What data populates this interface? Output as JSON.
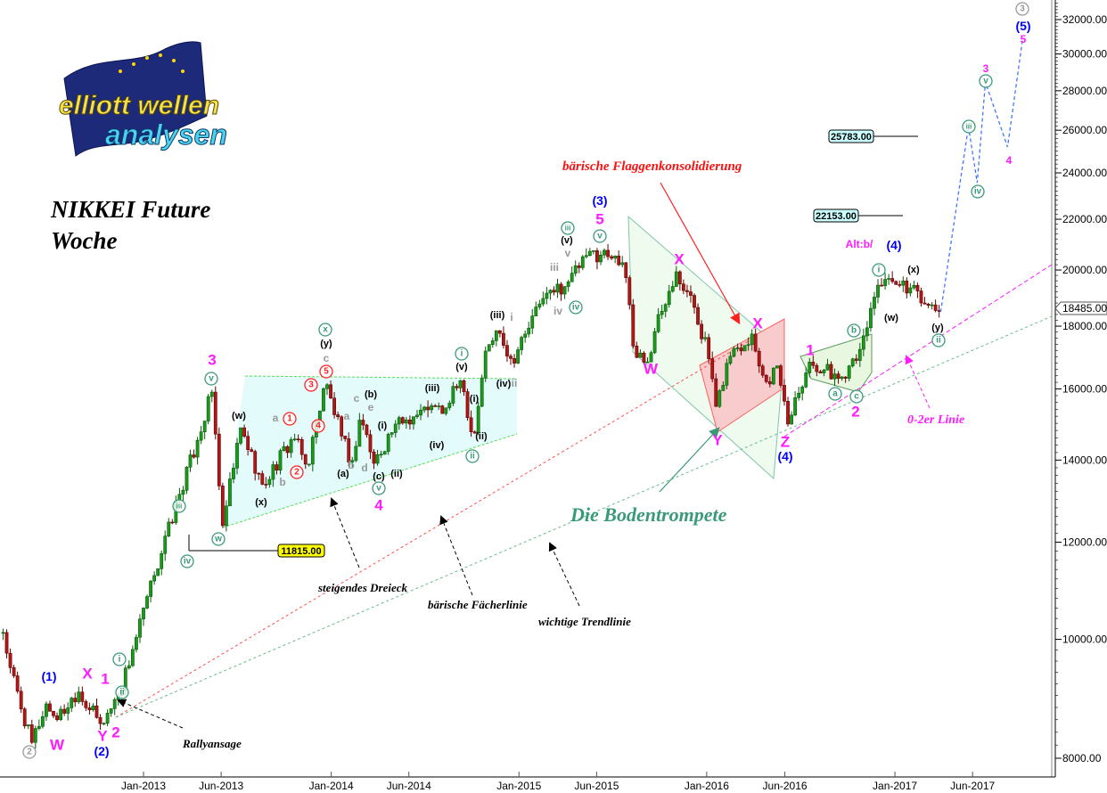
{
  "logo": {
    "line1": "elliott wellen",
    "line2": "analysen"
  },
  "title": {
    "line1": "NIKKEI Future",
    "line2": "Woche"
  },
  "notes": {
    "flag": "bärische Flaggenkonsolidierung",
    "trumpet": "Die Bodentrompete",
    "triangle": "steigendes Dreieck",
    "fan": "bärische Fächerlinie",
    "trend": "wichtige Trendlinie",
    "rally": "Rallyansage",
    "line02": "0-2er Linie"
  },
  "chart_data": {
    "type": "candlestick",
    "instrument": "NIKKEI Future",
    "timeframe": "Woche",
    "y_scale": "log",
    "ylim": [
      7800,
      33000
    ],
    "y_ticks": [
      "8000.00",
      "10000.00",
      "12000.00",
      "14000.00",
      "16000.00",
      "18000.00",
      "20000.00",
      "22000.00",
      "24000.00",
      "26000.00",
      "28000.00",
      "30000.00",
      "32000.00"
    ],
    "x_ticks": [
      "Jan-2013",
      "Jun-2013",
      "Jan-2014",
      "Jun-2014",
      "Jan-2015",
      "Jun-2015",
      "Jan-2016",
      "Jun-2016",
      "Jan-2017",
      "Jun-2017"
    ],
    "last_price": "18485.00",
    "price_path": [
      [
        "2012-04-03",
        10130
      ],
      [
        "2012-04-15",
        9550
      ],
      [
        "2012-05-28",
        8220
      ],
      [
        "2012-06-26",
        8860
      ],
      [
        "2012-07-17",
        8600
      ],
      [
        "2012-08-26",
        9085
      ],
      [
        "2012-10-10",
        8525
      ],
      [
        "2012-11-14",
        9010
      ],
      [
        "2012-12-13",
        9875
      ],
      [
        "2013-01-25",
        11385
      ],
      [
        "2013-03-09",
        13015
      ],
      [
        "2013-04-13",
        14390
      ],
      [
        "2013-05-14",
        15905
      ],
      [
        "2013-06-04",
        12380
      ],
      [
        "2013-07-09",
        14875
      ],
      [
        "2013-08-21",
        13345
      ],
      [
        "2013-10-20",
        14630
      ],
      [
        "2013-11-15",
        13800
      ],
      [
        "2013-12-20",
        16230
      ],
      [
        "2014-01-24",
        14505
      ],
      [
        "2014-02-10",
        13915
      ],
      [
        "2014-02-27",
        15255
      ],
      [
        "2014-03-25",
        13915
      ],
      [
        "2014-05-07",
        15005
      ],
      [
        "2014-07-07",
        15385
      ],
      [
        "2014-08-10",
        15385
      ],
      [
        "2014-09-11",
        16310
      ],
      [
        "2014-10-05",
        14505
      ],
      [
        "2014-10-27",
        17150
      ],
      [
        "2014-11-22",
        17880
      ],
      [
        "2014-12-18",
        16865
      ],
      [
        "2015-01-13",
        17735
      ],
      [
        "2015-02-17",
        18960
      ],
      [
        "2015-04-10",
        19600
      ],
      [
        "2015-05-14",
        20615
      ],
      [
        "2015-07-05",
        20615
      ],
      [
        "2015-07-31",
        19600
      ],
      [
        "2015-08-12",
        17150
      ],
      [
        "2015-09-12",
        16865
      ],
      [
        "2015-09-30",
        18490
      ],
      [
        "2015-11-03",
        19935
      ],
      [
        "2015-12-08",
        18645
      ],
      [
        "2016-01-03",
        17150
      ],
      [
        "2016-01-20",
        15385
      ],
      [
        "2016-02-12",
        17010
      ],
      [
        "2016-03-29",
        17735
      ],
      [
        "2016-04-24",
        16175
      ],
      [
        "2016-05-20",
        16780
      ],
      [
        "2016-06-05",
        14875
      ],
      [
        "2016-06-24",
        15905
      ],
      [
        "2016-07-20",
        16865
      ],
      [
        "2016-08-15",
        16585
      ],
      [
        "2016-09-18",
        16310
      ],
      [
        "2016-10-14",
        17010
      ],
      [
        "2016-10-28",
        17295
      ],
      [
        "2016-11-27",
        19440
      ],
      [
        "2017-01-09",
        19440
      ],
      [
        "2017-02-12",
        19280
      ],
      [
        "2017-03-10",
        18645
      ],
      [
        "2017-03-31",
        18485
      ]
    ],
    "projection": [
      [
        "2017-03-31",
        18485
      ],
      [
        "2017-05-24",
        26180
      ],
      [
        "2017-06-10",
        23560
      ],
      [
        "2017-06-26",
        28460
      ],
      [
        "2017-08-08",
        25195
      ],
      [
        "2017-09-06",
        30790
      ]
    ],
    "levels": [
      "11815.00",
      "22153.00",
      "25783.00"
    ],
    "colors": {
      "up": "#1a9a1a",
      "down": "#b01818",
      "magenta": "#ff1aff",
      "blue": "#0000ff",
      "teal": "#3a9a78",
      "red": "#ff2020",
      "projection": "#4477ff"
    },
    "wave_labels": [
      {
        "t": "3",
        "s": "magenta"
      },
      {
        "t": "4",
        "s": "magenta"
      },
      {
        "t": "5",
        "s": "magenta"
      },
      {
        "t": "1",
        "s": "magenta"
      },
      {
        "t": "2",
        "s": "magenta"
      },
      {
        "t": "1",
        "s": "magenta"
      },
      {
        "t": "2",
        "s": "magenta"
      },
      {
        "t": "X",
        "s": "magenta"
      },
      {
        "t": "W",
        "s": "magenta"
      },
      {
        "t": "Y",
        "s": "magenta"
      },
      {
        "t": "W",
        "s": "magenta"
      },
      {
        "t": "X",
        "s": "magenta"
      },
      {
        "t": "Y",
        "s": "magenta"
      },
      {
        "t": "X",
        "s": "magenta"
      },
      {
        "t": "Z",
        "s": "magenta"
      },
      {
        "t": "3",
        "s": "magenta-s"
      },
      {
        "t": "4",
        "s": "magenta-s"
      },
      {
        "t": "5",
        "s": "magenta-s"
      },
      {
        "t": "Alt:b/",
        "s": "magenta-s"
      },
      {
        "t": "(1)",
        "s": "blue"
      },
      {
        "t": "(2)",
        "s": "blue"
      },
      {
        "t": "(3)",
        "s": "blue"
      },
      {
        "t": "(4)",
        "s": "blue"
      },
      {
        "t": "(4)",
        "s": "blue"
      },
      {
        "t": "(5)",
        "s": "blue"
      },
      {
        "t": "2",
        "s": "c-grey"
      },
      {
        "t": "3",
        "s": "c-grey"
      },
      {
        "t": "v",
        "s": "c-green"
      },
      {
        "t": "w",
        "s": "c-green"
      },
      {
        "t": "iii",
        "s": "c-green"
      },
      {
        "t": "iv",
        "s": "c-green"
      },
      {
        "t": "i",
        "s": "c-green"
      },
      {
        "t": "ii",
        "s": "c-green"
      },
      {
        "t": "x",
        "s": "c-green"
      },
      {
        "t": "v",
        "s": "c-green"
      },
      {
        "t": "i",
        "s": "c-green"
      },
      {
        "t": "ii",
        "s": "c-green"
      },
      {
        "t": "iii",
        "s": "c-green"
      },
      {
        "t": "v",
        "s": "c-green"
      },
      {
        "t": "iv",
        "s": "c-green"
      },
      {
        "t": "i",
        "s": "c-green"
      },
      {
        "t": "b",
        "s": "c-green"
      },
      {
        "t": "a",
        "s": "c-green"
      },
      {
        "t": "c",
        "s": "c-green"
      },
      {
        "t": "ii",
        "s": "c-green"
      },
      {
        "t": "iii",
        "s": "c-green"
      },
      {
        "t": "iv",
        "s": "c-green"
      },
      {
        "t": "v",
        "s": "c-green"
      },
      {
        "t": "1",
        "s": "c-red"
      },
      {
        "t": "2",
        "s": "c-red"
      },
      {
        "t": "3",
        "s": "c-red"
      },
      {
        "t": "4",
        "s": "c-red"
      },
      {
        "t": "5",
        "s": "c-red"
      },
      {
        "t": "(y)",
        "s": "black"
      },
      {
        "t": "(w)",
        "s": "black"
      },
      {
        "t": "(x)",
        "s": "black"
      },
      {
        "t": "(b)",
        "s": "black"
      },
      {
        "t": "(a)",
        "s": "black"
      },
      {
        "t": "(c)",
        "s": "black"
      },
      {
        "t": "(i)",
        "s": "black"
      },
      {
        "t": "(ii)",
        "s": "black"
      },
      {
        "t": "(iii)",
        "s": "black"
      },
      {
        "t": "(iv)",
        "s": "black"
      },
      {
        "t": "(v)",
        "s": "black"
      },
      {
        "t": "(iv)",
        "s": "black"
      },
      {
        "t": "(i)",
        "s": "black"
      },
      {
        "t": "(ii)",
        "s": "black"
      },
      {
        "t": "(iii)",
        "s": "black"
      },
      {
        "t": "(v)",
        "s": "black"
      },
      {
        "t": "(w)",
        "s": "black"
      },
      {
        "t": "(x)",
        "s": "black"
      },
      {
        "t": "(y)",
        "s": "black"
      },
      {
        "t": "c",
        "s": "grey"
      },
      {
        "t": "a",
        "s": "grey"
      },
      {
        "t": "b",
        "s": "grey"
      },
      {
        "t": "c",
        "s": "grey"
      },
      {
        "t": "a",
        "s": "grey"
      },
      {
        "t": "e",
        "s": "grey"
      },
      {
        "t": "b",
        "s": "grey"
      },
      {
        "t": "d",
        "s": "grey"
      },
      {
        "t": "ii",
        "s": "grey"
      },
      {
        "t": "i",
        "s": "grey"
      },
      {
        "t": "iii",
        "s": "grey"
      },
      {
        "t": "v",
        "s": "grey"
      },
      {
        "t": "iv",
        "s": "grey"
      }
    ]
  }
}
